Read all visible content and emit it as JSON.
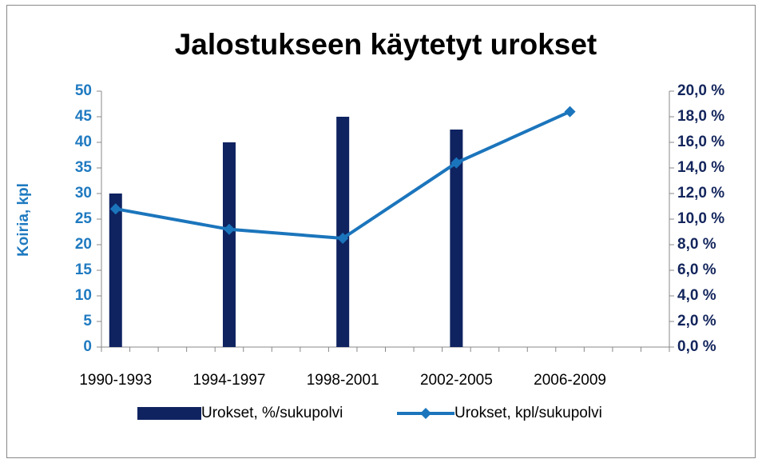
{
  "chart_data": {
    "type": "bar_line",
    "title": "Jalostukseen käytetyt urokset",
    "y_label": "Koiria, kpl",
    "categories": [
      "1990-1993",
      "1994-1997",
      "1998-2001",
      "2002-2005",
      "2006-2009"
    ],
    "series": [
      {
        "name": "Urokset, %/sukupolvi",
        "type": "bar",
        "color": "#0f2361",
        "values": [
          30,
          40,
          45,
          42.5,
          null
        ]
      },
      {
        "name": "Urokset, kpl/sukupolvi",
        "type": "line",
        "axis": "y2",
        "color": "#1b75bc",
        "values": [
          10.8,
          9.2,
          8.5,
          14.4,
          18.4
        ]
      }
    ],
    "ylim": [
      0,
      50
    ],
    "yticks": [
      0,
      5,
      10,
      15,
      20,
      25,
      30,
      35,
      40,
      45,
      50
    ],
    "y2lim": [
      0,
      20
    ],
    "y2ticks": [
      {
        "value": 0,
        "label": "0,0 %"
      },
      {
        "value": 2,
        "label": "2,0 %"
      },
      {
        "value": 4,
        "label": "4,0 %"
      },
      {
        "value": 6,
        "label": "6,0 %"
      },
      {
        "value": 8,
        "label": "8,0 %"
      },
      {
        "value": 10,
        "label": "10,0 %"
      },
      {
        "value": 12,
        "label": "12,0 %"
      },
      {
        "value": 14,
        "label": "14,0 %"
      },
      {
        "value": 16,
        "label": "16,0 %"
      },
      {
        "value": 18,
        "label": "18,0 %"
      },
      {
        "value": 20,
        "label": "20,0 %"
      }
    ],
    "legend": "bottom"
  }
}
